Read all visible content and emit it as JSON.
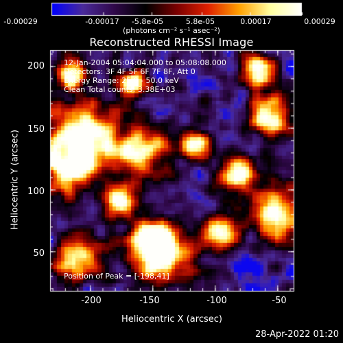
{
  "chart_data": {
    "type": "heatmap",
    "title": "Reconstructed RHESSI Image",
    "xlabel": "Heliocentric X (arcsec)",
    "ylabel": "Heliocentric Y (arcsec)",
    "xlim": [
      -232,
      -37
    ],
    "ylim": [
      18,
      213
    ],
    "x_ticks": [
      -200,
      -150,
      -100,
      -50
    ],
    "y_ticks": [
      50,
      100,
      150,
      200
    ],
    "colorbar": {
      "ticks": [
        "-0.00029",
        "-0.00017",
        "-5.8e-05",
        "5.8e-05",
        "0.00017",
        "0.00029"
      ],
      "tick_values": [
        -0.00029,
        -0.00017,
        -5.8e-05,
        5.8e-05,
        0.00017,
        0.00029
      ],
      "range": [
        -0.00029,
        0.00029
      ],
      "units": "(photons cm⁻² s⁻¹ asec⁻²)",
      "colormap_stops": [
        "#0000ff",
        "#4a2a9a",
        "#30084a",
        "#000000",
        "#7a0000",
        "#e02000",
        "#ffa000",
        "#ffffa0",
        "#ffffff"
      ]
    },
    "annotations": {
      "time": "12-Jan-2004 05:04:04.000 to 05:08:08.000",
      "detectors": "Detectors: 3F 4F 5F 6F 7F 8F, Att 0",
      "energy": "Energy Range: 25.0 - 50.0 keV",
      "clean": "Clean    Total counts: 3.38E+03",
      "peak": "Position of Peak = [-198,41]"
    },
    "bright_sources": [
      {
        "x": -210,
        "y": 45,
        "w": 14
      },
      {
        "x": -205,
        "y": 145,
        "w": 20
      },
      {
        "x": -218,
        "y": 122,
        "w": 14
      },
      {
        "x": -160,
        "y": 130,
        "w": 15
      },
      {
        "x": -140,
        "y": 45,
        "w": 16
      },
      {
        "x": -150,
        "y": 60,
        "w": 12
      },
      {
        "x": -95,
        "y": 65,
        "w": 10
      },
      {
        "x": -80,
        "y": 112,
        "w": 10
      },
      {
        "x": -55,
        "y": 160,
        "w": 12
      },
      {
        "x": -50,
        "y": 80,
        "w": 14
      },
      {
        "x": -65,
        "y": 195,
        "w": 10
      },
      {
        "x": -165,
        "y": 185,
        "w": 8
      },
      {
        "x": -215,
        "y": 195,
        "w": 8
      },
      {
        "x": -115,
        "y": 135,
        "w": 9
      },
      {
        "x": -175,
        "y": 90,
        "w": 9
      }
    ]
  },
  "footer": {
    "date": "28-Apr-2022 01:20"
  }
}
